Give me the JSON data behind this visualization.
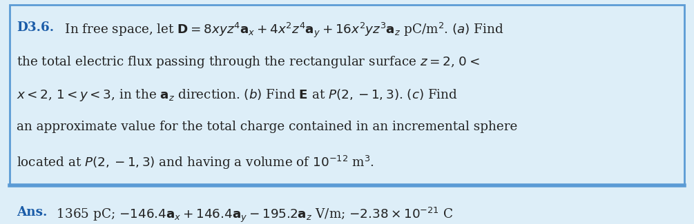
{
  "bg_color": "#ddeef8",
  "border_color": "#5b9bd5",
  "title_color": "#1a5ca8",
  "text_color": "#222222",
  "ans_color": "#1a5ca8",
  "fig_width": 10.05,
  "fig_height": 3.25,
  "label": "D3.6.",
  "line1": " In free space, let $\\mathbf{D} = 8xyz^4\\mathbf{a}_x+4x^2z^4\\mathbf{a}_y+16x^2yz^3\\mathbf{a}_z$ pC/m$^2$. $(a)$ Find",
  "line2": "the total electric flux passing through the rectangular surface $z = 2$, $0 <$",
  "line3": "$x < 2$, $1 < y < 3$, in the $\\mathbf{a}_z$ direction. $(b)$ Find $\\mathbf{E}$ at $P(2, -1, 3)$. $(c)$ Find",
  "line4": "an approximate value for the total charge contained in an incremental sphere",
  "line5": "located at $P(2, -1, 3)$ and having a volume of $10^{-12}$ m$^3$.",
  "ans_label": "Ans.",
  "ans_text": " 1365 pC; $-146.4\\mathbf{a}_x + 146.4\\mathbf{a}_y - 195.2\\mathbf{a}_z$ V/m; $-2.38 \\times 10^{-21}$ C",
  "fontsize": 13.2,
  "ans_fontsize": 13.2
}
